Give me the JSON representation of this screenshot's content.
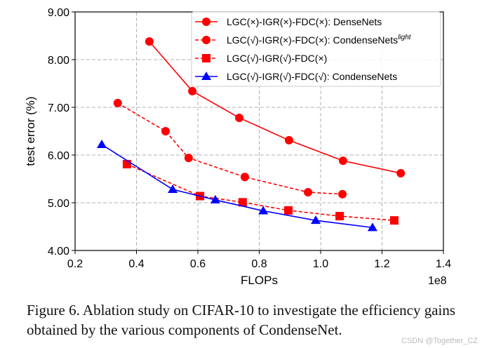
{
  "chart_data": {
    "type": "line",
    "xlabel": "FLOPs",
    "ylabel": "test error (%)",
    "x_offset_label": "1e8",
    "xlim": [
      0.2,
      1.4
    ],
    "ylim": [
      4.0,
      9.0
    ],
    "xticks": [
      "0.2",
      "0.4",
      "0.6",
      "0.8",
      "1.0",
      "1.2",
      "1.4"
    ],
    "yticks": [
      "4.00",
      "5.00",
      "6.00",
      "7.00",
      "8.00",
      "9.00"
    ],
    "grid": true,
    "legend_placement": "top-right",
    "series": [
      {
        "name": "LGC(×)-IGR(×)-FDC(×): DenseNets",
        "name_sup": "",
        "color": "#ff0000",
        "dash": false,
        "marker": "circle",
        "x": [
          0.442,
          0.582,
          0.735,
          0.897,
          1.073,
          1.261
        ],
        "y": [
          8.38,
          7.34,
          6.78,
          6.31,
          5.88,
          5.62
        ]
      },
      {
        "name": "LGC(√)-IGR(×)-FDC(×): CondenseNets",
        "name_sup": "light",
        "color": "#ff0000",
        "dash": true,
        "marker": "circle",
        "x": [
          0.339,
          0.495,
          0.57,
          0.753,
          0.959,
          1.071
        ],
        "y": [
          7.09,
          6.5,
          5.94,
          5.54,
          5.22,
          5.18
        ]
      },
      {
        "name": "LGC(√)-IGR(√)-FDC(×)",
        "name_sup": "",
        "color": "#ff0000",
        "dash": true,
        "marker": "square",
        "x": [
          0.369,
          0.607,
          0.746,
          0.895,
          1.062,
          1.24
        ],
        "y": [
          5.81,
          5.14,
          5.01,
          4.84,
          4.72,
          4.63
        ]
      },
      {
        "name": "LGC(√)-IGR(√)-FDC(√): CondenseNets",
        "name_sup": "",
        "color": "#0000ff",
        "dash": false,
        "marker": "triangle",
        "x": [
          0.287,
          0.518,
          0.657,
          0.813,
          0.984,
          1.169
        ],
        "y": [
          6.22,
          5.28,
          5.06,
          4.83,
          4.63,
          4.48
        ]
      }
    ]
  },
  "caption": "Figure 6. Ablation study on CIFAR-10 to investigate the efficiency gains obtained by the various components of CondenseNet.",
  "watermark": "CSDN @Together_CZ"
}
